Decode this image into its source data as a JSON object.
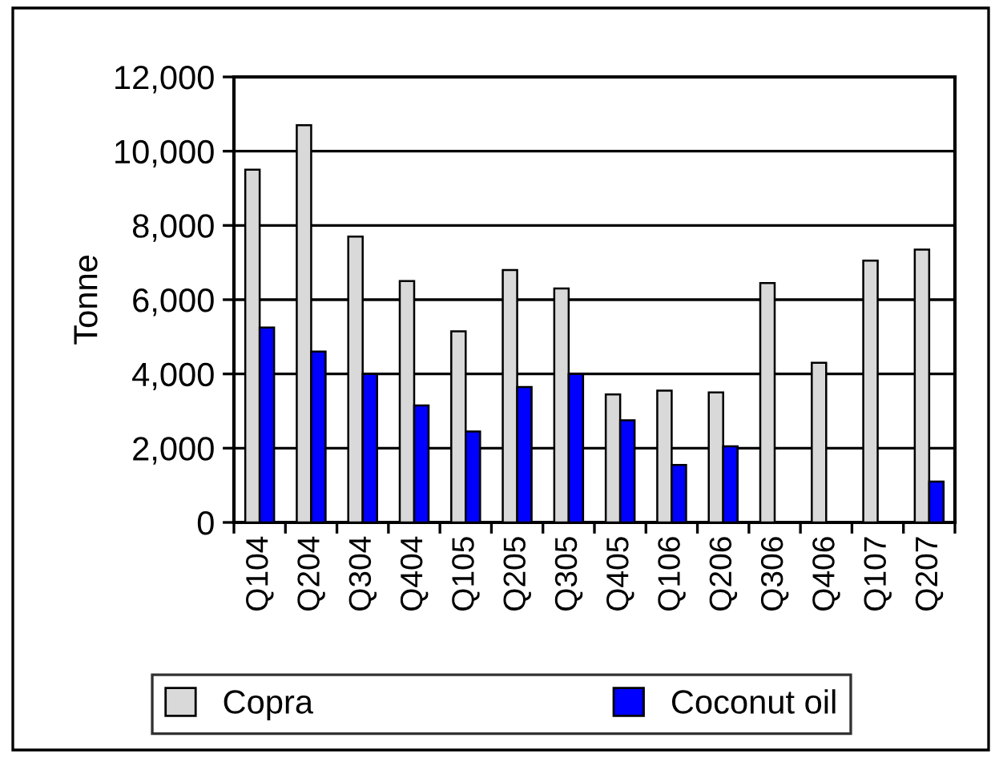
{
  "chart_data": {
    "type": "bar",
    "ylabel": "Tonne",
    "categories": [
      "Q104",
      "Q204",
      "Q304",
      "Q404",
      "Q105",
      "Q205",
      "Q305",
      "Q405",
      "Q106",
      "Q206",
      "Q306",
      "Q406",
      "Q107",
      "Q207"
    ],
    "series": [
      {
        "name": "Copra",
        "color": "#d9d9d9",
        "values": [
          9500,
          10700,
          7700,
          6500,
          5150,
          6800,
          6300,
          3450,
          3550,
          3500,
          6450,
          4300,
          7050,
          7350
        ]
      },
      {
        "name": "Coconut oil",
        "color": "#0000ff",
        "values": [
          5250,
          4600,
          4000,
          3150,
          2450,
          3650,
          4000,
          2750,
          1550,
          2050,
          0,
          0,
          0,
          1100
        ]
      }
    ],
    "ylim": [
      0,
      12000
    ],
    "yticks": [
      {
        "value": 0,
        "label": "0"
      },
      {
        "value": 2000,
        "label": "2,000"
      },
      {
        "value": 4000,
        "label": "4,000"
      },
      {
        "value": 6000,
        "label": "6,000"
      },
      {
        "value": 8000,
        "label": "8,000"
      },
      {
        "value": 10000,
        "label": "10,000"
      },
      {
        "value": 12000,
        "label": "12,000"
      }
    ],
    "grid": "y",
    "legend": "bottom"
  }
}
